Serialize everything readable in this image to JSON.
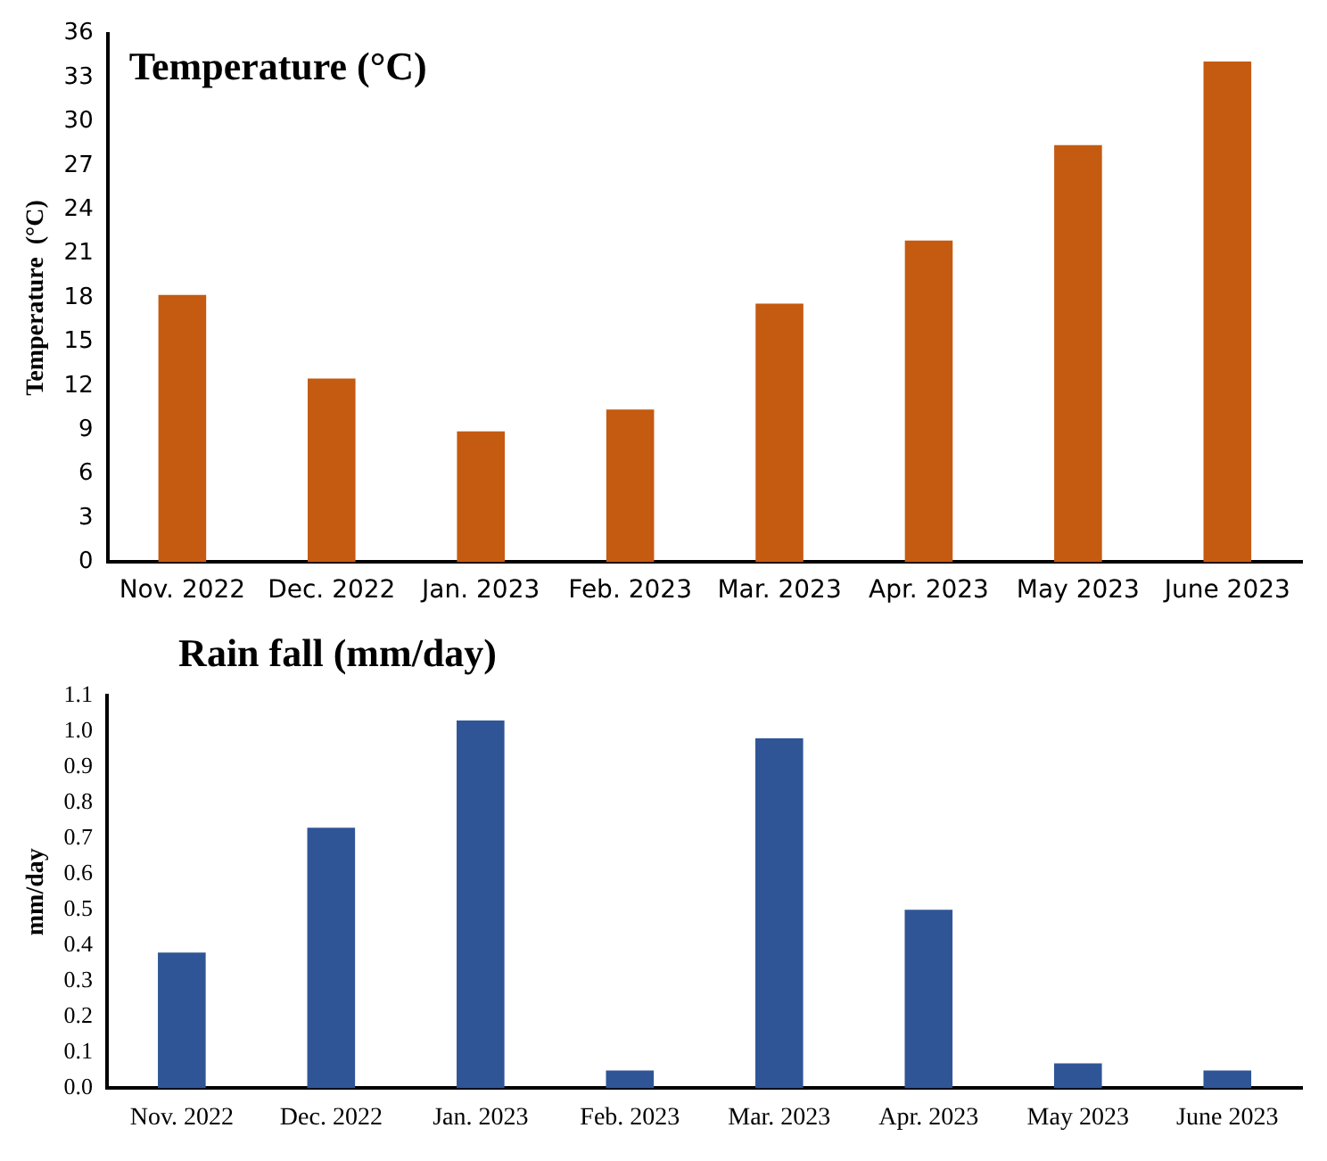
{
  "chart_data": [
    {
      "type": "bar",
      "title": "Temperature (°C)",
      "ylabel": "Temperature  (°C)",
      "categories": [
        "Nov. 2022",
        "Dec. 2022",
        "Jan. 2023",
        "Feb. 2023",
        "Mar. 2023",
        "Apr. 2023",
        "May 2023",
        "June 2023"
      ],
      "values": [
        18.2,
        12.5,
        8.9,
        10.4,
        17.6,
        21.9,
        28.4,
        34.1
      ],
      "color": "#c55a11",
      "ylim": [
        0,
        36
      ],
      "yticks": [
        0,
        3,
        6,
        9,
        12,
        15,
        18,
        21,
        24,
        27,
        30,
        33,
        36
      ],
      "grid": false,
      "legend": false
    },
    {
      "type": "bar",
      "title": "Rain fall (mm/day)",
      "ylabel": "mm/day",
      "categories": [
        "Nov. 2022",
        "Dec. 2022",
        "Jan. 2023",
        "Feb. 2023",
        "Mar. 2023",
        "Apr. 2023",
        "May 2023",
        "June 2023"
      ],
      "values": [
        0.38,
        0.73,
        1.03,
        0.05,
        0.98,
        0.5,
        0.07,
        0.05
      ],
      "color": "#2f5597",
      "ylim": [
        0,
        1.1
      ],
      "yticks": [
        {
          "value": 0,
          "label": "0.0"
        },
        {
          "value": 0.1,
          "label": "0.1"
        },
        {
          "value": 0.2,
          "label": "0.2"
        },
        {
          "value": 0.3,
          "label": "0.3"
        },
        {
          "value": 0.4,
          "label": "0.4"
        },
        {
          "value": 0.5,
          "label": "0.5"
        },
        {
          "value": 0.6,
          "label": "0.6"
        },
        {
          "value": 0.7,
          "label": "0.7"
        },
        {
          "value": 0.8,
          "label": "0.8"
        },
        {
          "value": 0.9,
          "label": "0.9"
        },
        {
          "value": 1,
          "label": "1.0"
        },
        {
          "value": 1.1,
          "label": "1.1"
        }
      ],
      "grid": false,
      "legend": false
    }
  ]
}
